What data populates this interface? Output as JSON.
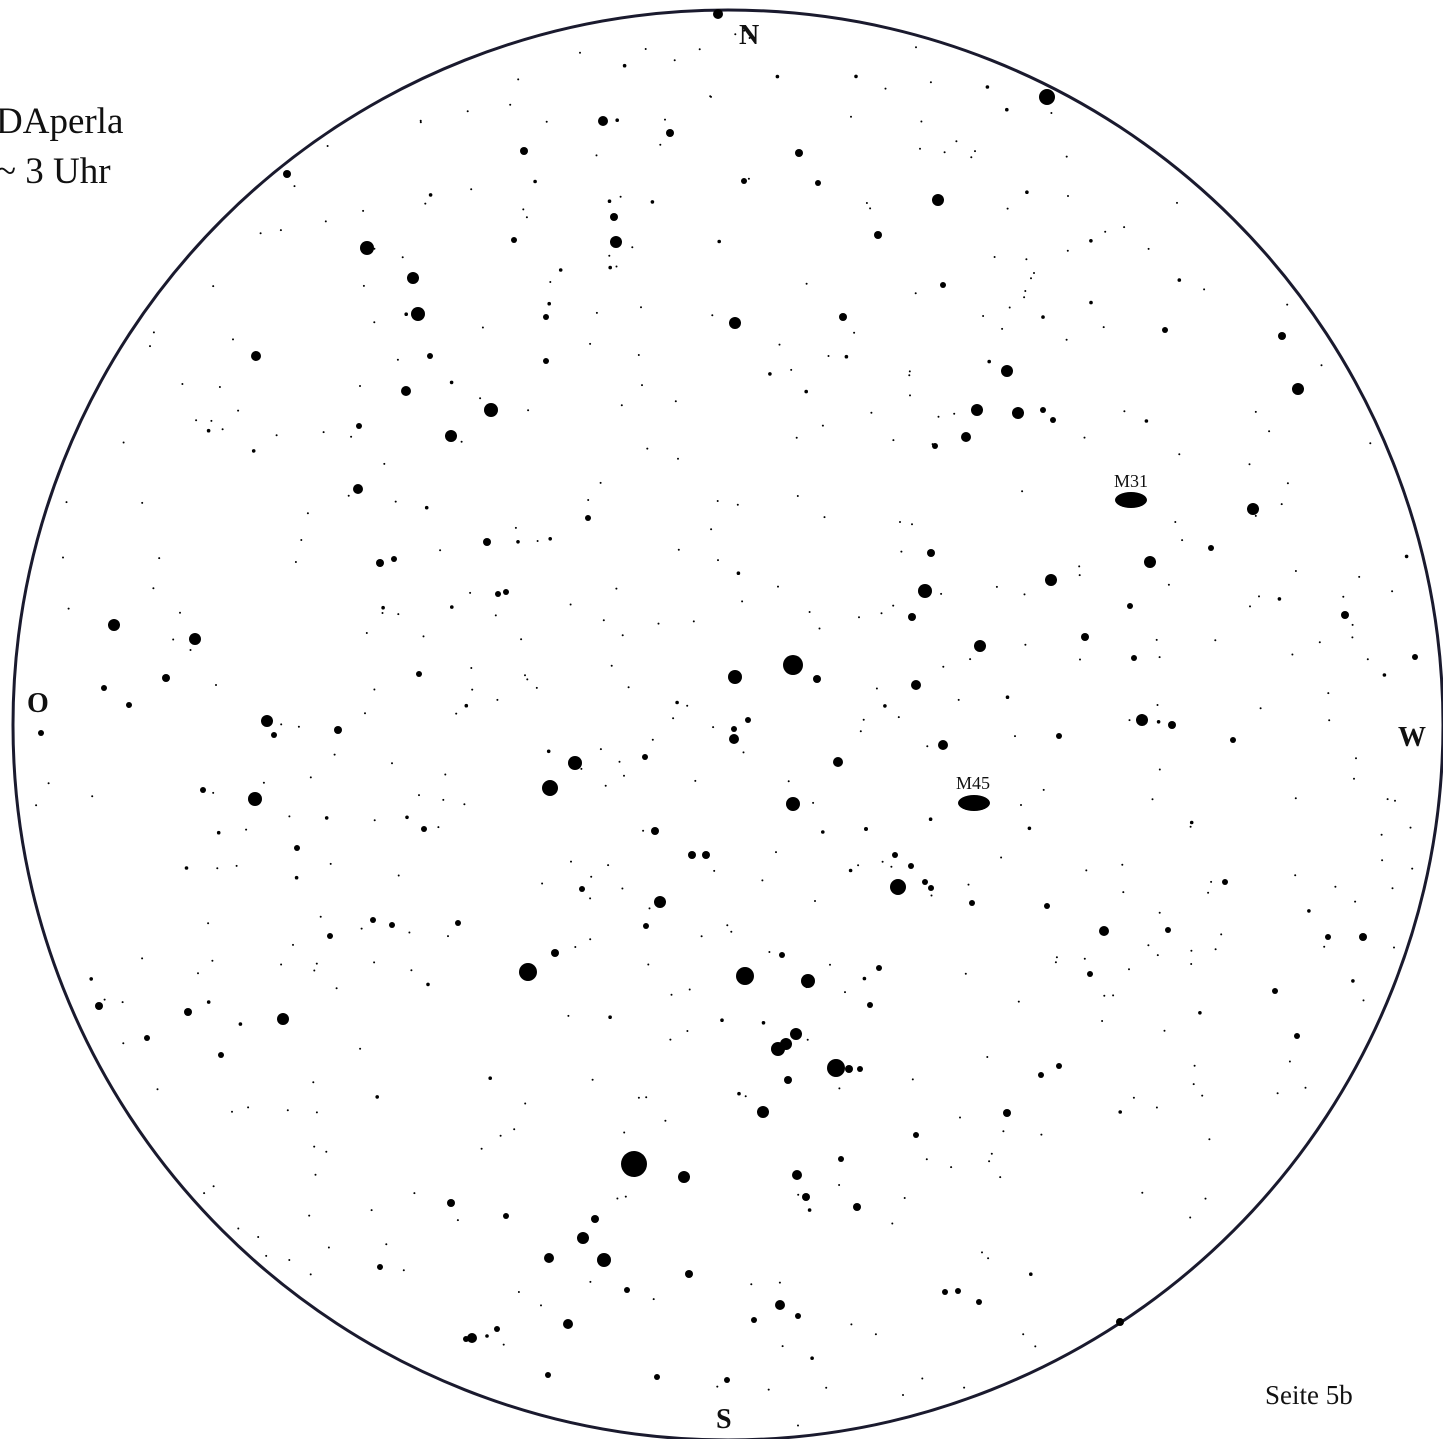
{
  "header": {
    "title_line1": "DAperla",
    "title_line2": "~ 3 Uhr"
  },
  "directions": {
    "north": "N",
    "east": "O",
    "west": "W",
    "south": "S"
  },
  "objects": [
    {
      "name": "M31",
      "label": "M31"
    },
    {
      "name": "M45",
      "label": "M45"
    }
  ],
  "footer": {
    "page_label": "Seite 5b"
  },
  "colors": {
    "ink": "#000000",
    "horizon": "#1a1a2e",
    "background": "#ffffff"
  }
}
